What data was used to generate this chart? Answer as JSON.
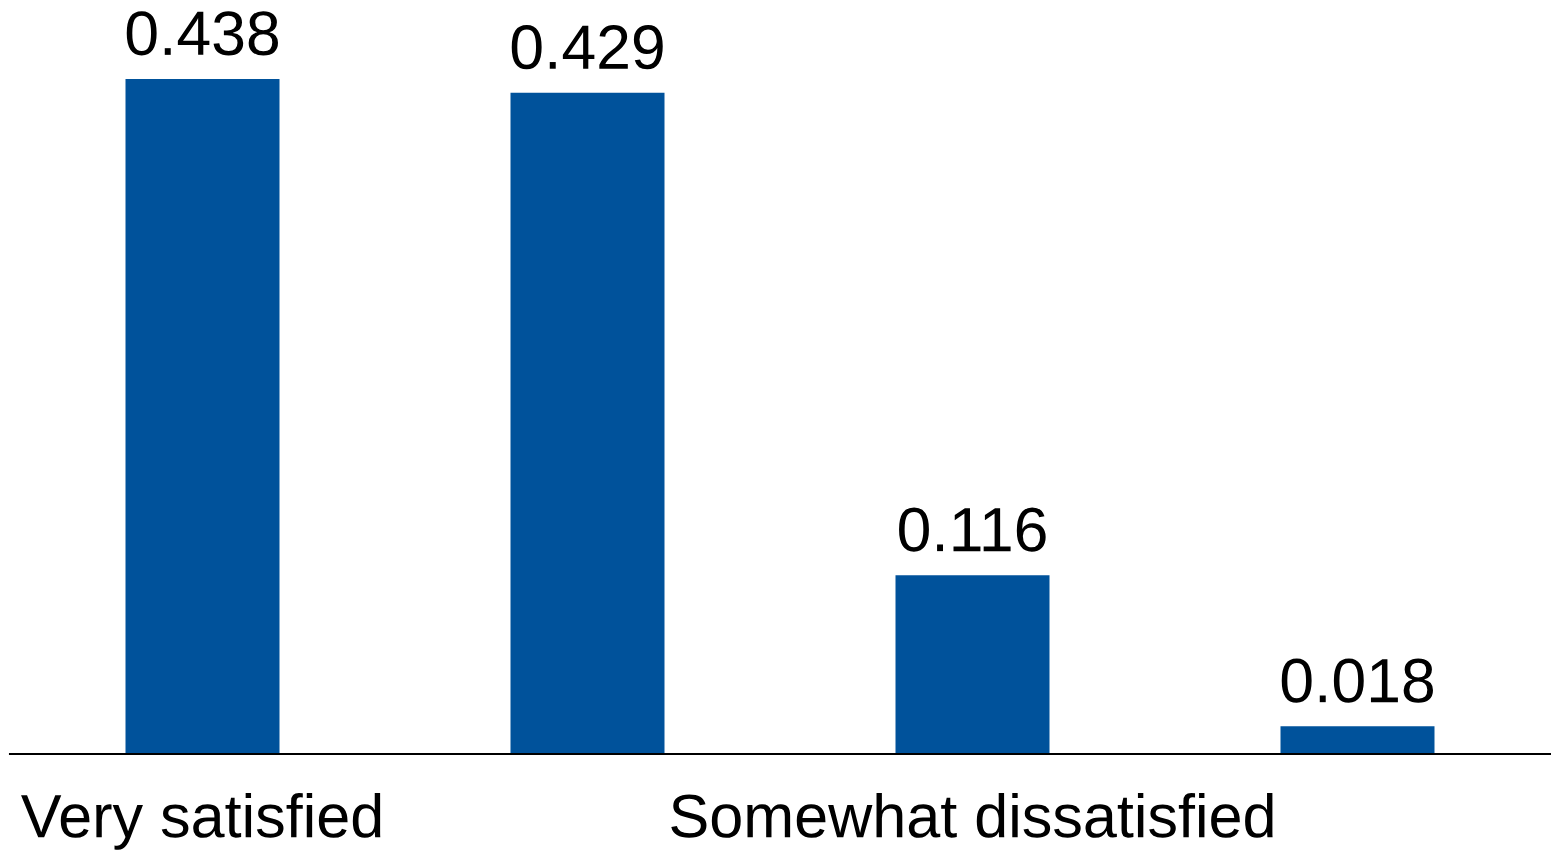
{
  "chart_data": {
    "type": "bar",
    "categories": [
      "Very satisfied",
      null,
      "Somewhat dissatisfied",
      null
    ],
    "values": [
      0.438,
      0.429,
      0.116,
      0.018
    ],
    "color": "#00529b",
    "data_labels": true,
    "grid": false,
    "legend": false,
    "tick_labels": "x"
  }
}
